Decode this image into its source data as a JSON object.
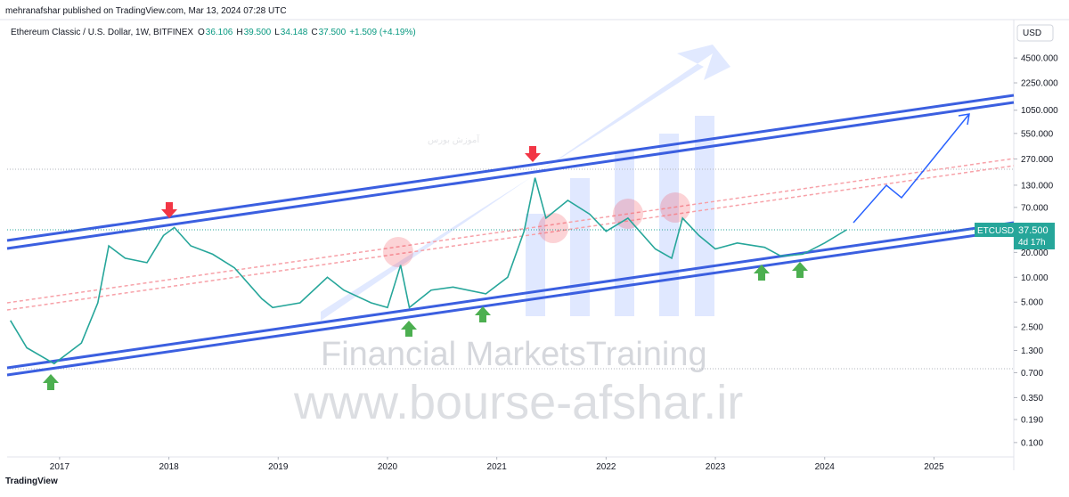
{
  "header": {
    "published": "mehranafshar published on TradingView.com, Mar 13, 2024 07:28 UTC",
    "symbol": "Ethereum Classic / U.S. Dollar, 1W, BITFINEX",
    "ohlc": [
      {
        "label": "O",
        "value": "36.106"
      },
      {
        "label": "H",
        "value": "39.500"
      },
      {
        "label": "L",
        "value": "34.148"
      },
      {
        "label": "C",
        "value": "37.500"
      }
    ],
    "change": "+1.509 (+4.19%)",
    "currency": "USD"
  },
  "watermark": {
    "persian": "آموزش بورس",
    "training": "Financial MarketsTraining",
    "site": "www.bourse-afshar.ir"
  },
  "footer": "TradingView",
  "chart_data": {
    "type": "line",
    "color": "#26a69a",
    "log_scale": true,
    "x": [
      2016.55,
      2016.7,
      2016.95,
      2017.2,
      2017.35,
      2017.45,
      2017.6,
      2017.8,
      2017.95,
      2018.05,
      2018.2,
      2018.4,
      2018.6,
      2018.85,
      2018.95,
      2019.2,
      2019.45,
      2019.6,
      2019.85,
      2020.0,
      2020.12,
      2020.2,
      2020.4,
      2020.6,
      2020.9,
      2021.1,
      2021.25,
      2021.35,
      2021.45,
      2021.65,
      2021.85,
      2022.0,
      2022.2,
      2022.45,
      2022.6,
      2022.7,
      2022.85,
      2023.0,
      2023.2,
      2023.45,
      2023.6,
      2023.8,
      2024.0,
      2024.2
    ],
    "values": [
      3.0,
      1.4,
      0.9,
      1.6,
      4.9,
      24,
      17,
      15,
      32,
      40,
      24,
      19,
      13,
      5.5,
      4.3,
      4.9,
      10,
      7,
      4.9,
      4.3,
      14,
      4.3,
      7,
      7.6,
      6.3,
      10,
      36,
      160,
      52,
      85,
      58,
      36,
      52,
      22,
      17,
      52,
      32,
      22,
      26,
      23,
      18,
      19,
      26,
      37.5
    ],
    "xlim": [
      2016.52,
      2025.73
    ],
    "xticks": [
      2017,
      2018,
      2019,
      2020,
      2021,
      2022,
      2023,
      2024,
      2025
    ],
    "ylim": [
      0.067,
      11300
    ],
    "yticks": [
      {
        "value": 0.1,
        "label": "0.100"
      },
      {
        "value": 0.19,
        "label": "0.190"
      },
      {
        "value": 0.35,
        "label": "0.350"
      },
      {
        "value": 0.7,
        "label": "0.700"
      },
      {
        "value": 1.3,
        "label": "1.300"
      },
      {
        "value": 2.5,
        "label": "2.500"
      },
      {
        "value": 5,
        "label": "5.000"
      },
      {
        "value": 10,
        "label": "10.000"
      },
      {
        "value": 20,
        "label": "20.000"
      },
      {
        "value": 70,
        "label": "70.000"
      },
      {
        "value": 130,
        "label": "130.000"
      },
      {
        "value": 270,
        "label": "270.000"
      },
      {
        "value": 550,
        "label": "550.000"
      },
      {
        "value": 1050,
        "label": "1050.000"
      },
      {
        "value": 2250,
        "label": "2250.000"
      },
      {
        "value": 4500,
        "label": "4500.000"
      }
    ],
    "last_price": {
      "name": "ETCUSD",
      "value": 37.5,
      "label": "37.500",
      "countdown": "4d 17h"
    }
  }
}
